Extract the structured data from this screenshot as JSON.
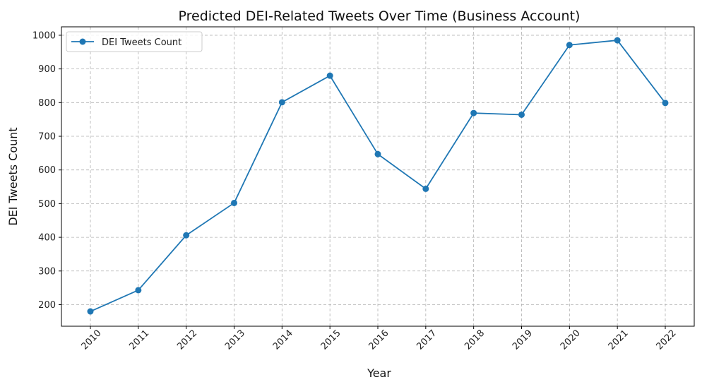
{
  "chart_data": {
    "type": "line",
    "title": "Predicted DEI-Related Tweets Over Time (Business Account)",
    "xlabel": "Year",
    "ylabel": "DEI Tweets Count",
    "categories": [
      "2010",
      "2011",
      "2012",
      "2013",
      "2014",
      "2015",
      "2016",
      "2017",
      "2018",
      "2019",
      "2020",
      "2021",
      "2022"
    ],
    "series": [
      {
        "name": "DEI Tweets Count",
        "color": "#1f77b4",
        "values": [
          180,
          243,
          406,
          502,
          801,
          880,
          647,
          544,
          769,
          764,
          971,
          985,
          799
        ]
      }
    ],
    "yticks": [
      200,
      300,
      400,
      500,
      600,
      700,
      800,
      900,
      1000
    ],
    "ylim": [
      136,
      1025
    ],
    "grid": true,
    "legend": "top-left"
  }
}
